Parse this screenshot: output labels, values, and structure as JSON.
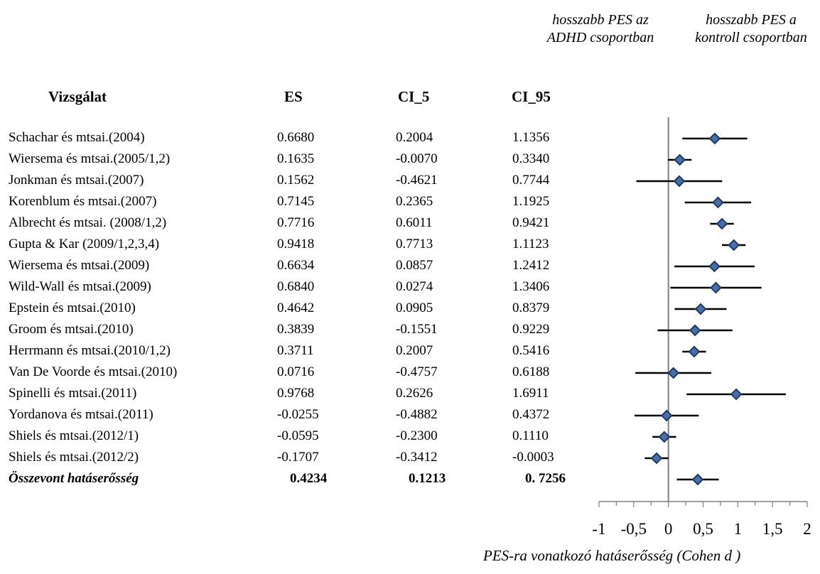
{
  "header": {
    "study_col": "Vizsgálat",
    "es_col": "ES",
    "ci_lo_col": "CI_5",
    "ci_hi_col": "CI_95",
    "note_left": "hosszabb PES az ADHD csoportban",
    "note_right": "hosszabb PES a kontroll csoportban"
  },
  "rows": [
    {
      "study": "Schachar és mtsai.(2004)",
      "es": "0.6680",
      "lo": "0.2004",
      "hi": "1.1356"
    },
    {
      "study": "Wiersema és mtsai.(2005/1,2)",
      "es": "0.1635",
      "lo": "-0.0070",
      "hi": "0.3340"
    },
    {
      "study": "Jonkman és mtsai.(2007)",
      "es": "0.1562",
      "lo": "-0.4621",
      "hi": "0.7744"
    },
    {
      "study": "Korenblum és mtsai.(2007)",
      "es": "0.7145",
      "lo": "0.2365",
      "hi": "1.1925"
    },
    {
      "study": "Albrecht és mtsai. (2008/1,2)",
      "es": "0.7716",
      "lo": "0.6011",
      "hi": "0.9421"
    },
    {
      "study": "Gupta & Kar (2009/1,2,3,4)",
      "es": "0.9418",
      "lo": "0.7713",
      "hi": "1.1123"
    },
    {
      "study": "Wiersema és mtsai.(2009)",
      "es": "0.6634",
      "lo": "0.0857",
      "hi": "1.2412"
    },
    {
      "study": "Wild-Wall és mtsai.(2009)",
      "es": "0.6840",
      "lo": "0.0274",
      "hi": "1.3406"
    },
    {
      "study": "Epstein és mtsai.(2010)",
      "es": "0.4642",
      "lo": "0.0905",
      "hi": "0.8379"
    },
    {
      "study": "Groom és mtsai.(2010)",
      "es": "0.3839",
      "lo": "-0.1551",
      "hi": "0.9229"
    },
    {
      "study": "Herrmann és mtsai.(2010/1,2)",
      "es": "0.3711",
      "lo": "0.2007",
      "hi": "0.5416"
    },
    {
      "study": "Van De Voorde és mtsai.(2010)",
      "es": "0.0716",
      "lo": "-0.4757",
      "hi": "0.6188"
    },
    {
      "study": "Spinelli és mtsai.(2011)",
      "es": "0.9768",
      "lo": "0.2626",
      "hi": "1.6911"
    },
    {
      "study": "Yordanova és mtsai.(2011)",
      "es": "-0.0255",
      "lo": "-0.4882",
      "hi": "0.4372"
    },
    {
      "study": "Shiels és mtsai.(2012/1)",
      "es": "-0.0595",
      "lo": "-0.2300",
      "hi": "0.1110"
    },
    {
      "study": "Shiels és mtsai.(2012/2)",
      "es": "-0.1707",
      "lo": "-0.3412",
      "hi": "-0.0003"
    }
  ],
  "pooled": {
    "study": "Összevont hatáserősség",
    "es": "0.4234",
    "lo": "0.1213",
    "hi": "0. 7256"
  },
  "chart_data": {
    "type": "forest",
    "xlabel": "PES-ra vonatkozó hatáserősség (Cohen d )",
    "xlim": [
      -1,
      2
    ],
    "xticks": [
      "-1",
      "-0,5",
      "0",
      "0,5",
      "1",
      "1,5",
      "2"
    ],
    "tick_values": [
      -1,
      -0.5,
      0,
      0.5,
      1,
      1.5,
      2
    ],
    "points": [
      {
        "es": 0.668,
        "lo": 0.2004,
        "hi": 1.1356
      },
      {
        "es": 0.1635,
        "lo": -0.007,
        "hi": 0.334
      },
      {
        "es": 0.1562,
        "lo": -0.4621,
        "hi": 0.7744
      },
      {
        "es": 0.7145,
        "lo": 0.2365,
        "hi": 1.1925
      },
      {
        "es": 0.7716,
        "lo": 0.6011,
        "hi": 0.9421
      },
      {
        "es": 0.9418,
        "lo": 0.7713,
        "hi": 1.1123
      },
      {
        "es": 0.6634,
        "lo": 0.0857,
        "hi": 1.2412
      },
      {
        "es": 0.684,
        "lo": 0.0274,
        "hi": 1.3406
      },
      {
        "es": 0.4642,
        "lo": 0.0905,
        "hi": 0.8379
      },
      {
        "es": 0.3839,
        "lo": -0.1551,
        "hi": 0.9229
      },
      {
        "es": 0.3711,
        "lo": 0.2007,
        "hi": 0.5416
      },
      {
        "es": 0.0716,
        "lo": -0.4757,
        "hi": 0.6188
      },
      {
        "es": 0.9768,
        "lo": 0.2626,
        "hi": 1.6911
      },
      {
        "es": -0.0255,
        "lo": -0.4882,
        "hi": 0.4372
      },
      {
        "es": -0.0595,
        "lo": -0.23,
        "hi": 0.111
      },
      {
        "es": -0.1707,
        "lo": -0.3412,
        "hi": -0.0003
      },
      {
        "es": 0.4234,
        "lo": 0.1213,
        "hi": 0.7256
      }
    ],
    "marker_color": "#1f3864",
    "marker_fill": "#4a6fa5"
  }
}
